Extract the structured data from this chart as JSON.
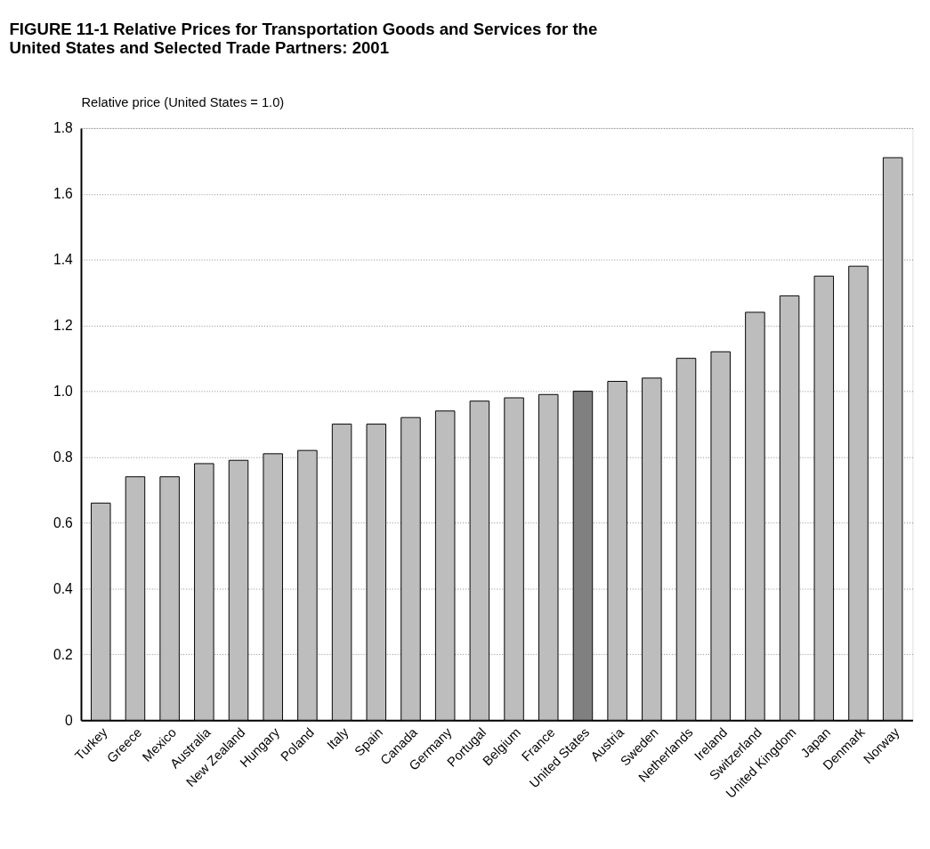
{
  "chart_data": {
    "type": "bar",
    "title": "FIGURE 11-1  Relative Prices for Transportation Goods and Services for the\nUnited States and Selected Trade Partners: 2001",
    "ylabel": "Relative price (United States = 1.0)",
    "categories": [
      "Turkey",
      "Greece",
      "Mexico",
      "Australia",
      "New Zealand",
      "Hungary",
      "Poland",
      "Italy",
      "Spain",
      "Canada",
      "Germany",
      "Portugal",
      "Belgium",
      "France",
      "United States",
      "Austria",
      "Sweden",
      "Netherlands",
      "Ireland",
      "Switzerland",
      "United Kingdom",
      "Japan",
      "Denmark",
      "Norway"
    ],
    "values": [
      0.66,
      0.74,
      0.74,
      0.78,
      0.79,
      0.81,
      0.82,
      0.9,
      0.9,
      0.92,
      0.94,
      0.97,
      0.98,
      0.99,
      1.0,
      1.03,
      1.04,
      1.1,
      1.12,
      1.24,
      1.29,
      1.35,
      1.38,
      1.71
    ],
    "colors": [
      "#bdbdbd",
      "#bdbdbd",
      "#bdbdbd",
      "#bdbdbd",
      "#bdbdbd",
      "#bdbdbd",
      "#bdbdbd",
      "#bdbdbd",
      "#bdbdbd",
      "#bdbdbd",
      "#bdbdbd",
      "#bdbdbd",
      "#bdbdbd",
      "#bdbdbd",
      "#808080",
      "#bdbdbd",
      "#bdbdbd",
      "#bdbdbd",
      "#bdbdbd",
      "#bdbdbd",
      "#bdbdbd",
      "#bdbdbd",
      "#bdbdbd",
      "#bdbdbd"
    ],
    "ylim": [
      0,
      1.8
    ],
    "yticks": [
      {
        "value": 0,
        "label": "0"
      },
      0.2,
      0.4,
      0.6,
      0.8,
      {
        "value": 1.0,
        "label": "1.0"
      },
      1.2,
      1.4,
      1.6,
      1.8
    ],
    "grid": "y"
  }
}
